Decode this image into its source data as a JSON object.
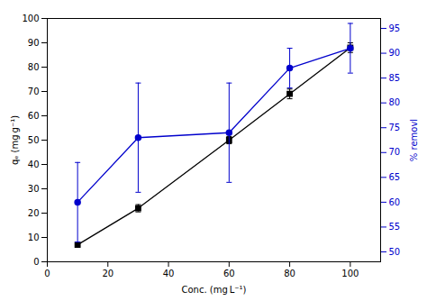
{
  "chart_data": {
    "type": "line",
    "xlabel": "Conc. (mg L⁻¹)",
    "ylabel": "qₑ (mg g⁻¹)",
    "y2label": "% removl",
    "x": [
      10,
      30,
      60,
      80,
      100
    ],
    "series": [
      {
        "color": "black",
        "marker": "square",
        "line_style": "solid",
        "values": [
          7,
          22,
          50,
          69,
          88
        ],
        "errors": [
          0.5,
          1.5,
          1.5,
          2.0,
          2.0
        ]
      },
      {
        "color": "#0000cc",
        "marker": "circle",
        "line_style": "solid",
        "axis": "y2",
        "values": [
          60,
          73,
          74,
          87,
          91
        ],
        "errors": [
          8.0,
          11.0,
          10.0,
          4.0,
          5.0
        ]
      }
    ],
    "xlim": [
      0,
      110
    ],
    "xticks": [
      0,
      20,
      40,
      60,
      80,
      100
    ],
    "ylim": [
      0,
      100
    ],
    "yticks": [
      0,
      10,
      20,
      30,
      40,
      50,
      60,
      70,
      80,
      90,
      100
    ],
    "y2lim": [
      48,
      97
    ],
    "y2ticks": [
      50,
      55,
      60,
      65,
      70,
      75,
      80,
      85,
      90,
      95
    ],
    "grid": false
  }
}
